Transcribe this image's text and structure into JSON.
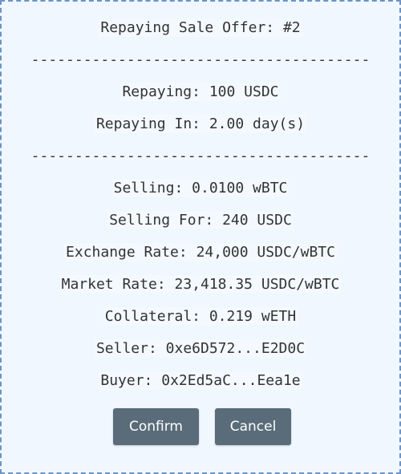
{
  "dialog": {
    "title": "Repaying Sale Offer: #2",
    "separator": "---------------------------------------",
    "repaying": "Repaying: 100 USDC",
    "repaying_in": "Repaying In: 2.00 day(s)",
    "selling": "Selling: 0.0100 wBTC",
    "selling_for": "Selling For: 240 USDC",
    "exchange_rate": "Exchange Rate: 24,000 USDC/wBTC",
    "market_rate": "Market Rate: 23,418.35 USDC/wBTC",
    "collateral": "Collateral: 0.219 wETH",
    "seller": "Seller: 0xe6D572...E2D0C",
    "buyer": "Buyer: 0x2Ed5aC...Eea1e",
    "confirm_label": "Confirm",
    "cancel_label": "Cancel"
  }
}
